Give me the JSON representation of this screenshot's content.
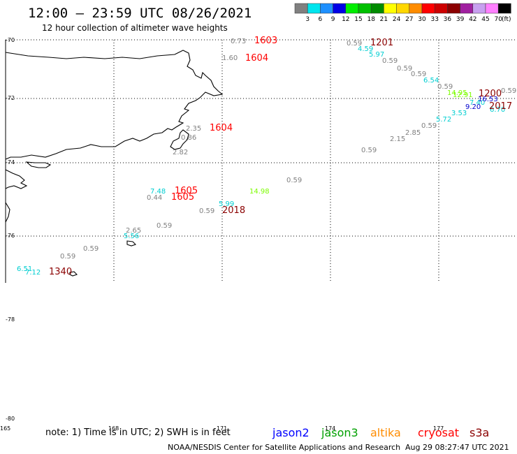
{
  "header": {
    "title": "12:00 – 23:59 UTC 08/26/2021",
    "subtitle": "12 hour collection of altimeter wave heights"
  },
  "colorbar": {
    "unit_label": "(ft)",
    "bins": [
      {
        "label": "3",
        "color": "#808080"
      },
      {
        "label": "6",
        "color": "#00e5ee"
      },
      {
        "label": "9",
        "color": "#1e90ff"
      },
      {
        "label": "12",
        "color": "#0000e6"
      },
      {
        "label": "15",
        "color": "#00ee00"
      },
      {
        "label": "18",
        "color": "#00c000"
      },
      {
        "label": "21",
        "color": "#008b00"
      },
      {
        "label": "24",
        "color": "#ffff00"
      },
      {
        "label": "27",
        "color": "#ffd700"
      },
      {
        "label": "30",
        "color": "#ff8c00"
      },
      {
        "label": "33",
        "color": "#ff0000"
      },
      {
        "label": "36",
        "color": "#cd0000"
      },
      {
        "label": "39",
        "color": "#8b0000"
      },
      {
        "label": "42",
        "color": "#a020a0"
      },
      {
        "label": "45",
        "color": "#c8a0f0"
      },
      {
        "label": "70",
        "color": "#ff80ff"
      },
      {
        "label": "",
        "color": "#000000"
      }
    ]
  },
  "map": {
    "lat_labels": [
      "-70",
      "-72",
      "-74",
      "-76",
      "-78",
      "-80"
    ],
    "lon_labels": [
      "165",
      "168",
      "171",
      "174",
      "177"
    ]
  },
  "observations": [
    {
      "text": "0.73",
      "color": "#808080"
    },
    {
      "text": "1603",
      "color": "#ff0000"
    },
    {
      "text": "1.60",
      "color": "#808080"
    },
    {
      "text": "1604",
      "color": "#ff0000"
    },
    {
      "text": "0.59",
      "color": "#808080"
    },
    {
      "text": "1201",
      "color": "#8b0000"
    },
    {
      "text": "4.59",
      "color": "#00ced1"
    },
    {
      "text": "5.97",
      "color": "#00ced1"
    },
    {
      "text": "0.59",
      "color": "#808080"
    },
    {
      "text": "0.59",
      "color": "#808080"
    },
    {
      "text": "0.59",
      "color": "#808080"
    },
    {
      "text": "6.54",
      "color": "#00ced1"
    },
    {
      "text": "0.59",
      "color": "#808080"
    },
    {
      "text": "14.95",
      "color": "#7cfc00"
    },
    {
      "text": "12.91",
      "color": "#7cfc00"
    },
    {
      "text": "1200",
      "color": "#8b0000"
    },
    {
      "text": "0.59",
      "color": "#808080"
    },
    {
      "text": "7.40",
      "color": "#00ced1"
    },
    {
      "text": "16.53",
      "color": "#0000cd"
    },
    {
      "text": "9.20",
      "color": "#0000cd"
    },
    {
      "text": "6.70",
      "color": "#00ced1"
    },
    {
      "text": "2017",
      "color": "#8b0000"
    },
    {
      "text": "3.53",
      "color": "#00ced1"
    },
    {
      "text": "5.72",
      "color": "#00ced1"
    },
    {
      "text": "0.59",
      "color": "#808080"
    },
    {
      "text": "2.85",
      "color": "#808080"
    },
    {
      "text": "2.15",
      "color": "#808080"
    },
    {
      "text": "0.59",
      "color": "#808080"
    },
    {
      "text": "2.35",
      "color": "#808080"
    },
    {
      "text": "1604",
      "color": "#ff0000"
    },
    {
      "text": "0.86",
      "color": "#808080"
    },
    {
      "text": "2.82",
      "color": "#808080"
    },
    {
      "text": "0.59",
      "color": "#808080"
    },
    {
      "text": "14.98",
      "color": "#7cfc00"
    },
    {
      "text": "7.48",
      "color": "#00ced1"
    },
    {
      "text": "1605",
      "color": "#ff0000"
    },
    {
      "text": "0.44",
      "color": "#808080"
    },
    {
      "text": "1605",
      "color": "#ff0000"
    },
    {
      "text": "5.99",
      "color": "#00ced1"
    },
    {
      "text": "0.59",
      "color": "#808080"
    },
    {
      "text": "2018",
      "color": "#8b0000"
    },
    {
      "text": "0.59",
      "color": "#808080"
    },
    {
      "text": "2.65",
      "color": "#808080"
    },
    {
      "text": "5.56",
      "color": "#00ced1"
    },
    {
      "text": "0.59",
      "color": "#808080"
    },
    {
      "text": "0.59",
      "color": "#808080"
    },
    {
      "text": "6.51",
      "color": "#00ced1"
    },
    {
      "text": "7.12",
      "color": "#00ced1"
    },
    {
      "text": "1340",
      "color": "#8b0000"
    }
  ],
  "footer": {
    "note": "note:  1) Time is in UTC;  2) SWH is in feet",
    "legend": [
      {
        "text": "jason2",
        "color": "#0000ff"
      },
      {
        "text": "jason3",
        "color": "#00a000"
      },
      {
        "text": "altika",
        "color": "#ff8c00"
      },
      {
        "text": "cryosat",
        "color": "#ff0000"
      },
      {
        "text": "s3a",
        "color": "#8b0000"
      }
    ],
    "credit": "NOAA/NESDIS Center for Satellite Applications and Research",
    "timestamp": "Aug 29 08:27:47 UTC 2021"
  }
}
